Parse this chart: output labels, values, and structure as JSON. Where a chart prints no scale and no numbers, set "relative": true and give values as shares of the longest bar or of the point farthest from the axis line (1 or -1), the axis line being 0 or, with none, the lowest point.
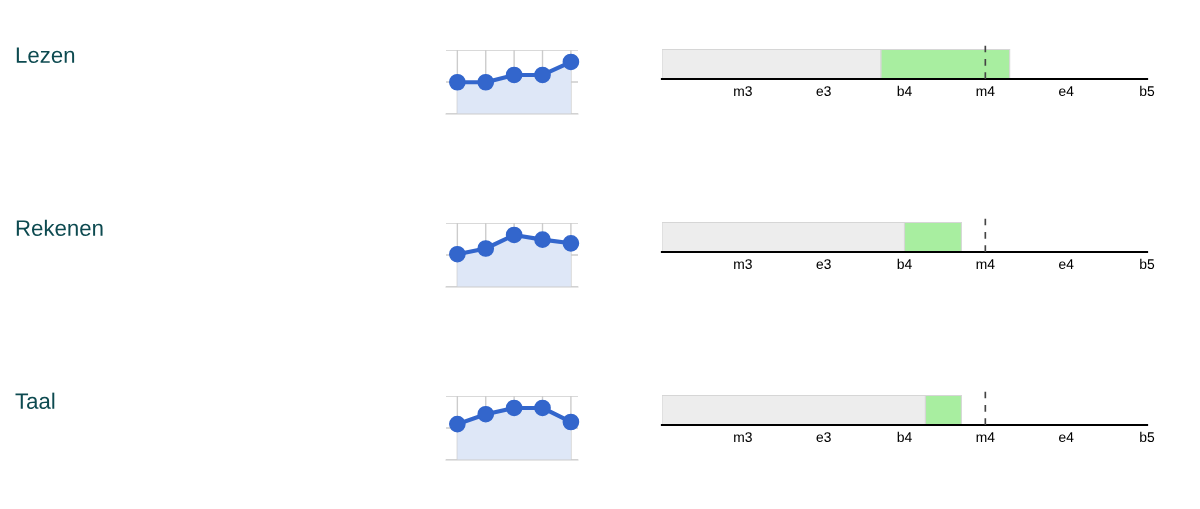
{
  "chart_data": [
    {
      "type": "other",
      "title": "Lezen"
    },
    {
      "type": "area",
      "categories": [
        null,
        null,
        null,
        null,
        null
      ],
      "relative": true,
      "grid": true,
      "tick_labels": false,
      "marker": "circle",
      "series": [
        {
          "color": "#3366cc",
          "values": [
            0.61,
            0.61,
            0.75,
            0.75,
            1
          ]
        }
      ]
    },
    {
      "type": "bar",
      "orientation": "horizontal",
      "stacked": true,
      "categories": [
        null
      ],
      "relative": true,
      "tick_labels": false,
      "annotations": [
        "m3",
        "e3",
        "b4",
        "m4",
        "e4",
        "b5"
      ],
      "series": [
        {
          "color": "#ededed",
          "values": [
            0.63
          ]
        },
        {
          "color": "#a8eea0",
          "values": [
            0.37
          ]
        }
      ],
      "ref_lines": [
        {
          "axis": "x",
          "value": 0.93,
          "color": "#444444",
          "line_style": "dashed"
        }
      ]
    },
    {
      "type": "other",
      "title": "Rekenen"
    },
    {
      "type": "area",
      "categories": [
        null,
        null,
        null,
        null,
        null
      ],
      "relative": true,
      "grid": true,
      "tick_labels": false,
      "marker": "circle",
      "series": [
        {
          "color": "#3366cc",
          "values": [
            0.63,
            0.74,
            1,
            0.91,
            0.84
          ]
        }
      ]
    },
    {
      "type": "bar",
      "orientation": "horizontal",
      "stacked": true,
      "categories": [
        null
      ],
      "relative": true,
      "tick_labels": false,
      "annotations": [
        "m3",
        "e3",
        "b4",
        "m4",
        "e4",
        "b5"
      ],
      "series": [
        {
          "color": "#ededed",
          "values": [
            0.81
          ]
        },
        {
          "color": "#a8eea0",
          "values": [
            0.19
          ]
        }
      ],
      "ref_lines": [
        {
          "axis": "x",
          "value": 1.08,
          "color": "#444444",
          "line_style": "dashed"
        }
      ]
    },
    {
      "type": "other",
      "title": "Taal"
    },
    {
      "type": "area",
      "categories": [
        null,
        null,
        null,
        null,
        null
      ],
      "relative": true,
      "grid": true,
      "tick_labels": false,
      "marker": "circle",
      "series": [
        {
          "color": "#3366cc",
          "values": [
            0.69,
            0.88,
            1,
            1,
            0.73
          ]
        }
      ]
    },
    {
      "type": "bar",
      "orientation": "horizontal",
      "stacked": true,
      "categories": [
        null
      ],
      "relative": true,
      "tick_labels": false,
      "annotations": [
        "m3",
        "e3",
        "b4",
        "m4",
        "e4",
        "b5"
      ],
      "series": [
        {
          "color": "#ededed",
          "values": [
            0.88
          ]
        },
        {
          "color": "#a8eea0",
          "values": [
            0.12
          ]
        }
      ],
      "ref_lines": [
        {
          "axis": "x",
          "value": 1.08,
          "color": "#444444",
          "line_style": "dashed"
        }
      ]
    }
  ]
}
